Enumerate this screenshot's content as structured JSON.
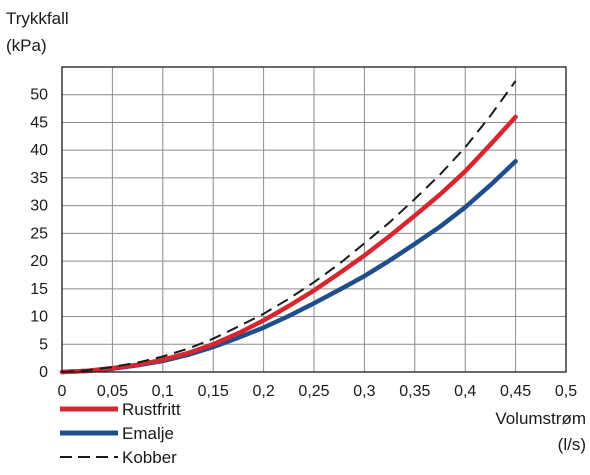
{
  "chart_data": {
    "type": "line",
    "ylabel_line1": "Trykkfall",
    "ylabel_line2": "(kPa)",
    "xlabel_line1": "Volumstrøm",
    "xlabel_line2": "(l/s)",
    "xlim": [
      0,
      0.5
    ],
    "ylim": [
      0,
      55
    ],
    "x_ticks": [
      0,
      0.05,
      0.1,
      0.15,
      0.2,
      0.25,
      0.3,
      0.35,
      0.4,
      0.45,
      0.5
    ],
    "x_tick_labels": [
      "0",
      "0,05",
      "0,1",
      "0,15",
      "0,2",
      "0,25",
      "0,3",
      "0,35",
      "0,4",
      "0,45",
      "0,5"
    ],
    "y_ticks": [
      0,
      5,
      10,
      15,
      20,
      25,
      30,
      35,
      40,
      45,
      50
    ],
    "y_tick_labels": [
      "0",
      "5",
      "10",
      "15",
      "20",
      "25",
      "30",
      "35",
      "40",
      "45",
      "50"
    ],
    "grid": true,
    "legend_position": "bottom-left",
    "series": [
      {
        "name": "Rustfritt",
        "color": "#d7262f",
        "style": "solid",
        "x": [
          0,
          0.025,
          0.05,
          0.075,
          0.1,
          0.125,
          0.15,
          0.175,
          0.2,
          0.225,
          0.25,
          0.275,
          0.3,
          0.325,
          0.35,
          0.375,
          0.4,
          0.425,
          0.45
        ],
        "y": [
          0,
          0.2,
          0.7,
          1.3,
          2.2,
          3.4,
          5.0,
          7.0,
          9.3,
          11.9,
          14.7,
          17.8,
          21.0,
          24.5,
          28.2,
          32.0,
          36.2,
          41.0,
          46.0
        ]
      },
      {
        "name": "Emalje",
        "color": "#1f4e8c",
        "style": "solid",
        "x": [
          0,
          0.025,
          0.05,
          0.075,
          0.1,
          0.125,
          0.15,
          0.175,
          0.2,
          0.225,
          0.25,
          0.275,
          0.3,
          0.325,
          0.35,
          0.375,
          0.4,
          0.425,
          0.45
        ],
        "y": [
          0,
          0.2,
          0.6,
          1.2,
          2.0,
          3.1,
          4.5,
          6.2,
          8.0,
          10.1,
          12.4,
          14.8,
          17.3,
          20.1,
          23.1,
          26.2,
          29.7,
          33.7,
          38.0
        ]
      },
      {
        "name": "Kobber",
        "color": "#1a1a1a",
        "style": "dashed",
        "x": [
          0,
          0.025,
          0.05,
          0.075,
          0.1,
          0.125,
          0.15,
          0.175,
          0.2,
          0.225,
          0.25,
          0.275,
          0.3,
          0.325,
          0.35,
          0.375,
          0.4,
          0.425,
          0.45
        ],
        "y": [
          0,
          0.3,
          0.9,
          1.7,
          2.8,
          4.2,
          6.0,
          8.2,
          10.5,
          13.2,
          16.2,
          19.5,
          23.2,
          27.0,
          31.2,
          35.6,
          40.5,
          46.2,
          52.5
        ]
      }
    ]
  }
}
